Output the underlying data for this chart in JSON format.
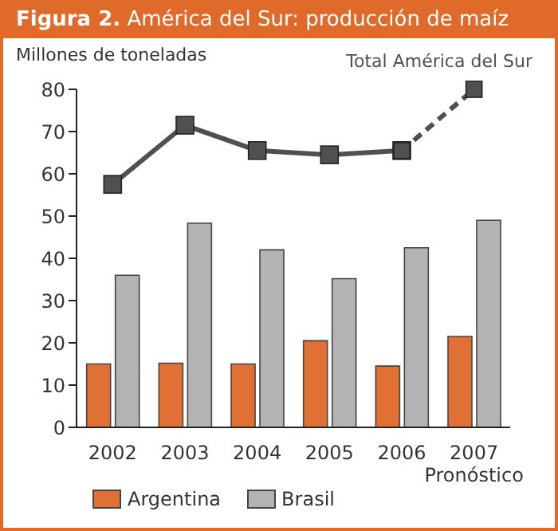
{
  "chart_data": {
    "type": "bar",
    "title": "Figura 2. América del Sur: producción de maíz",
    "ylabel": "Millones de toneladas",
    "categories": [
      "2002",
      "2003",
      "2004",
      "2005",
      "2006",
      "2007\nPronóstico"
    ],
    "series": [
      {
        "name": "Argentina",
        "color": "#e07034",
        "values": [
          15,
          15.2,
          15,
          20.5,
          14.5,
          21.5
        ]
      },
      {
        "name": "Brasil",
        "color": "#b3b3b3",
        "values": [
          36,
          48.3,
          42,
          35.2,
          42.5,
          49
        ]
      },
      {
        "name": "Total América del Sur",
        "type": "line",
        "color": "#505050",
        "line_style": "solid",
        "values": [
          57.5,
          71.5,
          65.5,
          64.5,
          65.5,
          null
        ]
      },
      {
        "type": "line",
        "color": "#505050",
        "line_style": "dashed",
        "values": [
          null,
          null,
          null,
          null,
          65.5,
          80
        ]
      }
    ],
    "ylim": [
      0,
      80
    ],
    "yticks": [
      0,
      10,
      20,
      30,
      40,
      50,
      60,
      70,
      80
    ],
    "marker": "square",
    "legend": "bottom"
  }
}
